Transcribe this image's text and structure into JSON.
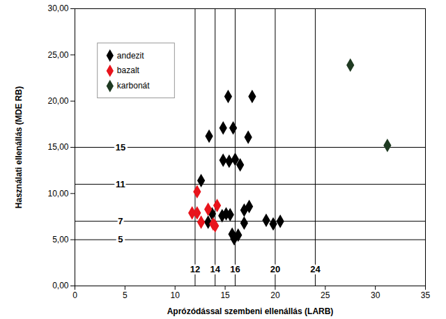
{
  "chart_data": {
    "type": "scatter",
    "xlabel": "Aprózódással szembeni ellenállás (LARB)",
    "ylabel": "Használati ellenállás (MDE RB)",
    "xlim": [
      0,
      35
    ],
    "xticks": [
      0,
      5,
      10,
      15,
      20,
      25,
      30,
      35
    ],
    "ylim": [
      0,
      30
    ],
    "yticks": [
      {
        "value": 0,
        "label": "0,00"
      },
      {
        "value": 5,
        "label": "5,00"
      },
      {
        "value": 10,
        "label": "10,00"
      },
      {
        "value": 15,
        "label": "15,00"
      },
      {
        "value": 20,
        "label": "20,00"
      },
      {
        "value": 25,
        "label": "25,00"
      },
      {
        "value": 30,
        "label": "30,00"
      }
    ],
    "grid": false,
    "legend": "top-left",
    "vlines": [
      12,
      14,
      16,
      20,
      24
    ],
    "hlines": [
      5,
      7,
      11,
      15
    ],
    "series": [
      {
        "name": "andezit",
        "color": "#000000",
        "marker": "diamond",
        "x": [
          12.6,
          13.4,
          15.3,
          17.7,
          14.8,
          15.8,
          17.3,
          14.8,
          15.4,
          16.0,
          16.5,
          13.3,
          13.7,
          14.7,
          15.1,
          15.5,
          16.9,
          17.4,
          16.9,
          15.7,
          15.9,
          16.3,
          19.1,
          19.8,
          20.5
        ],
        "values": [
          11.4,
          16.2,
          20.5,
          20.5,
          17.1,
          17.1,
          16.1,
          13.6,
          13.5,
          13.7,
          13.1,
          6.9,
          7.8,
          7.6,
          7.8,
          7.7,
          8.2,
          8.6,
          6.8,
          5.6,
          5.1,
          5.5,
          7.1,
          6.7,
          7.0
        ]
      },
      {
        "name": "bazalt",
        "color": "#e8141c",
        "marker": "diamond",
        "x": [
          11.7,
          12.2,
          12.2,
          12.6,
          13.3,
          14.2,
          14.0,
          13.8
        ],
        "values": [
          7.9,
          7.9,
          10.2,
          6.9,
          8.3,
          8.7,
          6.5,
          6.7
        ]
      },
      {
        "name": "karbonát",
        "color": "#1f3a22",
        "marker": "diamond",
        "x": [
          27.5,
          31.2
        ],
        "values": [
          23.9,
          15.2
        ]
      }
    ]
  }
}
